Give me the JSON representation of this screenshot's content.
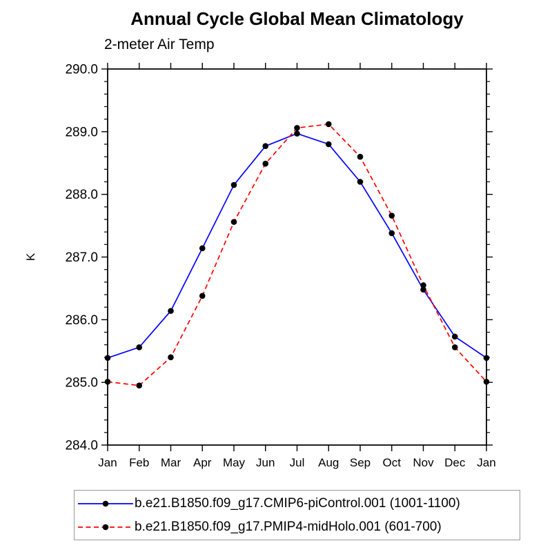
{
  "title": "Annual Cycle Global Mean Climatology",
  "subtitle": "2-meter Air Temp",
  "y_axis": {
    "label": "K",
    "tick_labels": [
      "290.0",
      "289.0",
      "288.0",
      "287.0",
      "286.0",
      "285.0",
      "284.0"
    ],
    "min": 284.0,
    "max": 290.0,
    "major_step": 1.0,
    "minor_step": 0.2
  },
  "x_axis": {
    "tick_labels": [
      "Jan",
      "Feb",
      "Mar",
      "Apr",
      "May",
      "Jun",
      "Jul",
      "Aug",
      "Sep",
      "Oct",
      "Nov",
      "Dec",
      "Jan"
    ]
  },
  "legend": {
    "entries": [
      {
        "label": "b.e21.B1850.f09_g17.CMIP6-piControl.001 (1001-1100)",
        "color": "#0000ff",
        "line_style": "solid",
        "marker": "filled-circle",
        "marker_color": "#000000"
      },
      {
        "label": "b.e21.B1850.f09_g17.PMIP4-midHolo.001 (601-700)",
        "color": "#ff0000",
        "line_style": "dashed",
        "marker": "filled-circle",
        "marker_color": "#000000"
      }
    ]
  },
  "chart_data": {
    "type": "line",
    "title": "Annual Cycle Global Mean Climatology",
    "subtitle": "2-meter Air Temp",
    "ylabel": "K",
    "xlabel": "",
    "ylim": [
      284.0,
      290.0
    ],
    "y_major_step": 1.0,
    "y_minor_step": 0.2,
    "grid": false,
    "legend_position": "bottom",
    "x": [
      "Jan",
      "Feb",
      "Mar",
      "Apr",
      "May",
      "Jun",
      "Jul",
      "Aug",
      "Sep",
      "Oct",
      "Nov",
      "Dec",
      "Jan"
    ],
    "series": [
      {
        "name": "b.e21.B1850.f09_g17.CMIP6-piControl.001 (1001-1100)",
        "color": "#0000ff",
        "line_style": "solid",
        "marker": "filled-circle",
        "marker_color": "#000000",
        "values": [
          285.39,
          285.56,
          286.14,
          287.14,
          288.15,
          288.77,
          288.97,
          288.8,
          288.2,
          287.38,
          286.48,
          285.73,
          285.39
        ]
      },
      {
        "name": "b.e21.B1850.f09_g17.PMIP4-midHolo.001 (601-700)",
        "color": "#ff0000",
        "line_style": "dashed",
        "marker": "filled-circle",
        "marker_color": "#000000",
        "values": [
          285.01,
          284.95,
          285.4,
          286.38,
          287.56,
          288.49,
          289.06,
          289.12,
          288.6,
          287.66,
          286.55,
          285.56,
          285.01
        ]
      }
    ]
  }
}
